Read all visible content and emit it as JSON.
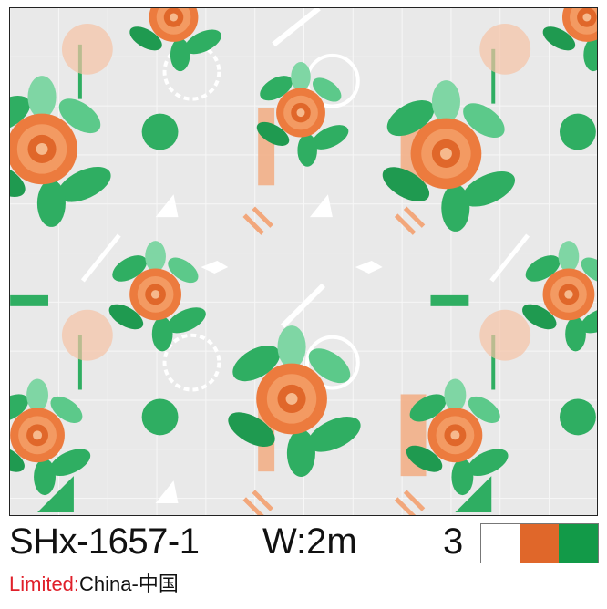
{
  "product": {
    "code": "SHx-1657-1",
    "width": "W:2m",
    "color_count": "3",
    "colors": [
      "#ffffff",
      "#e0672a",
      "#129a48"
    ],
    "origin_label": "Limited:",
    "origin_value": "China-中国"
  },
  "pattern": {
    "background": "#e9e9e9",
    "flower_color": "#ec7b3e",
    "leaf_color": "#2fae62",
    "motif": "floral-roses-with-geometric-shapes"
  }
}
